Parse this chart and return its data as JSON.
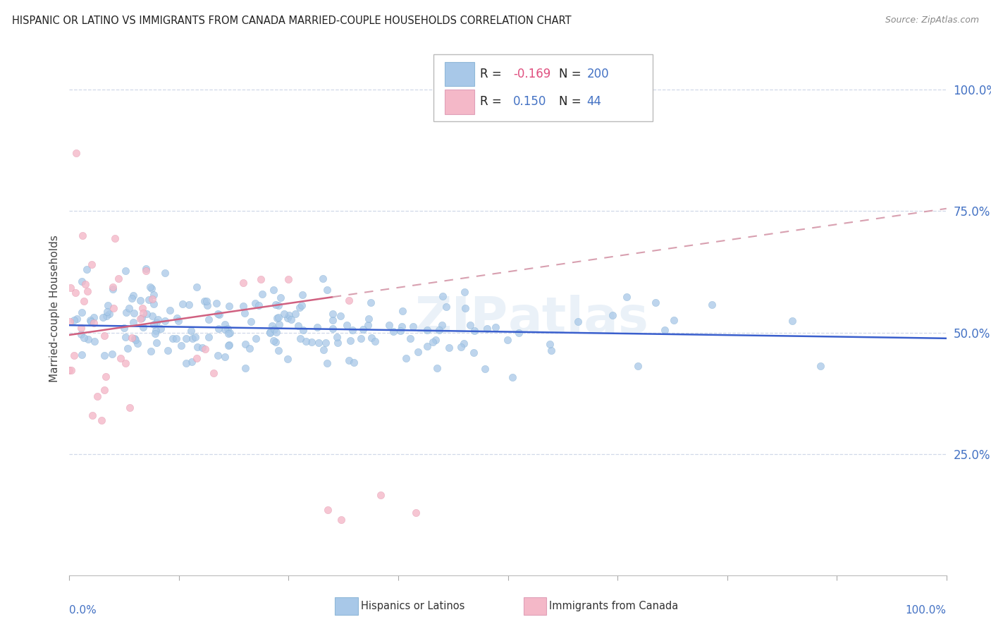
{
  "title": "HISPANIC OR LATINO VS IMMIGRANTS FROM CANADA MARRIED-COUPLE HOUSEHOLDS CORRELATION CHART",
  "source": "Source: ZipAtlas.com",
  "ylabel": "Married-couple Households",
  "ytick_labels": [
    "100.0%",
    "75.0%",
    "50.0%",
    "25.0%"
  ],
  "ytick_vals": [
    1.0,
    0.75,
    0.5,
    0.25
  ],
  "watermark": "ZIPAtlas",
  "legend_blue_r": "-0.169",
  "legend_blue_n": "200",
  "legend_pink_r": "0.150",
  "legend_pink_n": "44",
  "blue_dot_color": "#a8c8e8",
  "pink_dot_color": "#f4b8c8",
  "blue_line_color": "#3a5fcd",
  "pink_line_color": "#d06080",
  "pink_line_dash_color": "#d8a0b0",
  "r_value_color": "#e05080",
  "n_value_color": "#4472c4",
  "ytick_color": "#4472c4",
  "xlabel_color": "#4472c4",
  "grid_color": "#d0d8e8",
  "blue_line_start_y": 0.515,
  "blue_line_end_y": 0.488,
  "pink_line_start_x": 0.0,
  "pink_line_start_y": 0.495,
  "pink_line_solid_end_x": 0.3,
  "pink_line_solid_end_y": 0.545,
  "pink_line_dash_end_x": 1.0,
  "pink_line_dash_end_y": 0.755,
  "xlim": [
    0.0,
    1.0
  ],
  "ylim": [
    0.0,
    1.1
  ]
}
